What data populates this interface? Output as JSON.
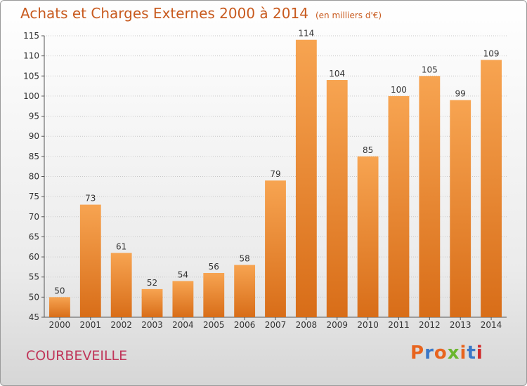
{
  "header": {
    "title": "Achats et Charges Externes 2000 à 2014",
    "unit": "(en milliers d'€)"
  },
  "footer": {
    "city": "COURBEVEILLE",
    "logo": "Proxiti",
    "logo_colors": [
      "#e8641e",
      "#3a78c8",
      "#e8641e",
      "#6ab62e",
      "#e8641e",
      "#3a78c8",
      "#d02a2a"
    ]
  },
  "chart_data": {
    "type": "bar",
    "title": "Achats et Charges Externes 2000 à 2014",
    "categories": [
      "2000",
      "2001",
      "2002",
      "2003",
      "2004",
      "2005",
      "2006",
      "2007",
      "2008",
      "2009",
      "2010",
      "2011",
      "2012",
      "2013",
      "2014"
    ],
    "values": [
      50,
      73,
      61,
      52,
      54,
      56,
      58,
      79,
      114,
      104,
      85,
      100,
      105,
      99,
      109
    ],
    "ylim": [
      45,
      115
    ],
    "yticks": [
      45,
      50,
      55,
      60,
      65,
      70,
      75,
      80,
      85,
      90,
      95,
      100,
      105,
      110,
      115
    ],
    "grid": true,
    "bar_color": "#e8862c"
  }
}
